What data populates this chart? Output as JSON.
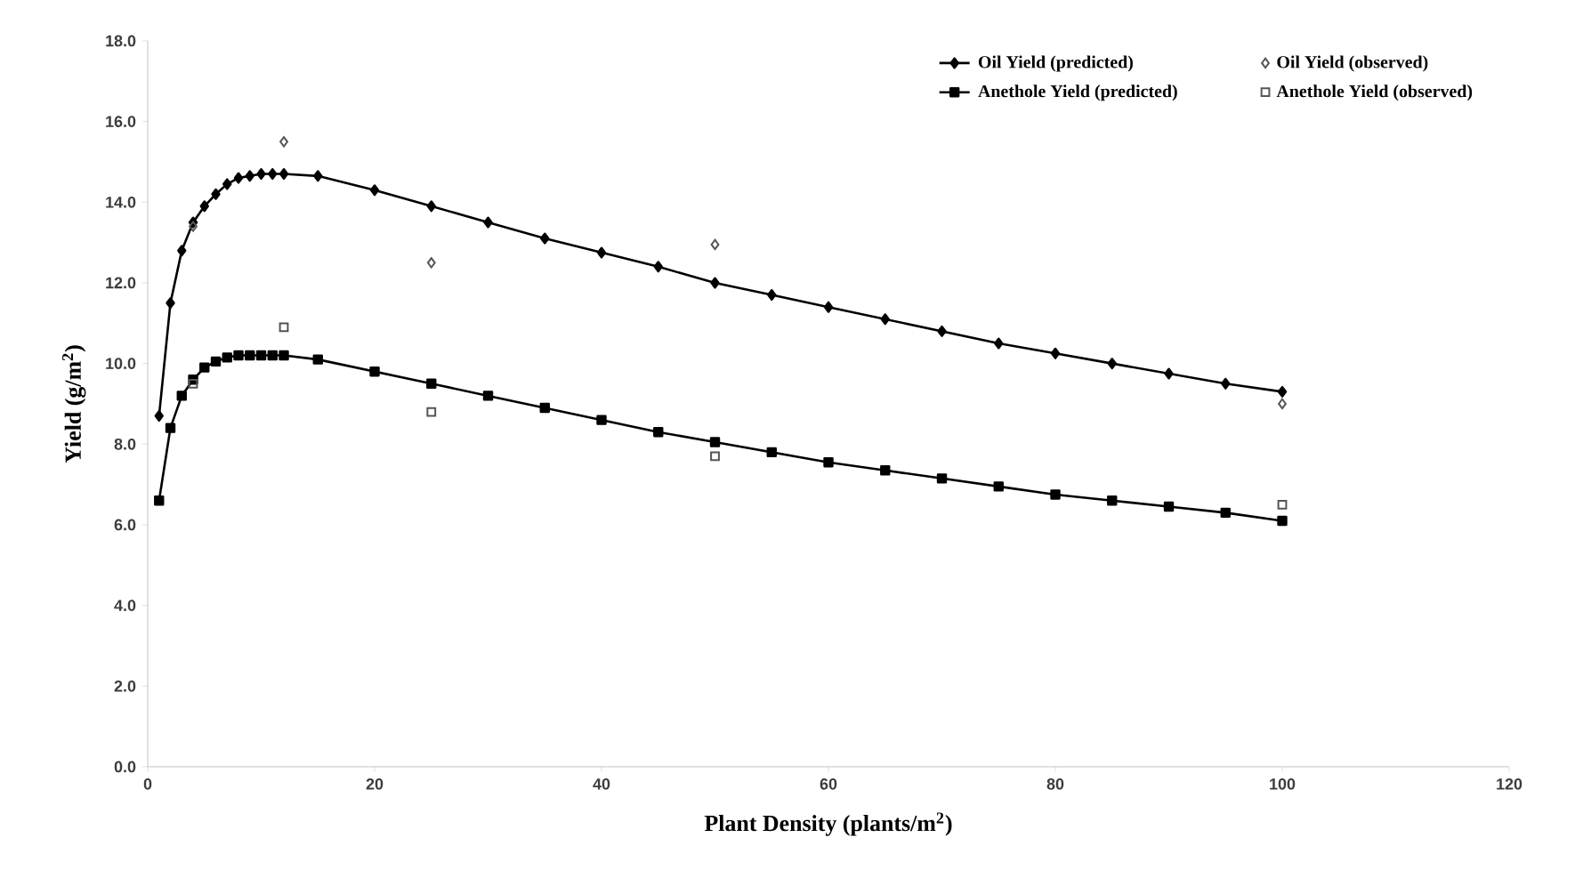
{
  "chart_data": {
    "type": "line",
    "xlabel": "Plant Density (plants/m$^{2}$)",
    "ylabel": "Yield (g/m$^{2}$)",
    "xlim": [
      0,
      120
    ],
    "xticks": [
      0,
      20,
      40,
      60,
      80,
      100,
      120
    ],
    "ylim": [
      0,
      18
    ],
    "yticks": [
      {
        "value": 0,
        "label": "0.0"
      },
      {
        "value": 2,
        "label": "2.0"
      },
      {
        "value": 4,
        "label": "4.0"
      },
      {
        "value": 6,
        "label": "6.0"
      },
      {
        "value": 8,
        "label": "8.0"
      },
      {
        "value": 10,
        "label": "10.0"
      },
      {
        "value": 12,
        "label": "12.0"
      },
      {
        "value": 14,
        "label": "14.0"
      },
      {
        "value": 16,
        "label": "16.0"
      },
      {
        "value": 18,
        "label": "18.0"
      }
    ],
    "legend": "top right",
    "series": [
      {
        "name": "Oil Yield (predicted)",
        "marker": "diamond",
        "color": "#000000",
        "x": [
          1,
          2,
          3,
          4,
          5,
          6,
          7,
          8,
          9,
          10,
          11,
          12,
          15,
          20,
          25,
          30,
          35,
          40,
          45,
          50,
          55,
          60,
          65,
          70,
          75,
          80,
          85,
          90,
          95,
          100
        ],
        "values": [
          8.7,
          11.5,
          12.8,
          13.5,
          13.9,
          14.2,
          14.45,
          14.6,
          14.65,
          14.7,
          14.7,
          14.7,
          14.65,
          14.3,
          13.9,
          13.5,
          13.1,
          12.75,
          12.4,
          12.0,
          11.7,
          11.4,
          11.1,
          10.8,
          10.5,
          10.25,
          10.0,
          9.75,
          9.5,
          9.3
        ]
      },
      {
        "name": "Oil Yield (observed)",
        "type": "scatter",
        "marker": "diamond",
        "color": "#555555",
        "x": [
          4,
          12,
          25,
          50,
          100
        ],
        "values": [
          13.4,
          15.5,
          12.5,
          12.95,
          9.0
        ]
      },
      {
        "name": "Anethole Yield (predicted)",
        "marker": "square",
        "color": "#000000",
        "x": [
          1,
          2,
          3,
          4,
          5,
          6,
          7,
          8,
          9,
          10,
          11,
          12,
          15,
          20,
          25,
          30,
          35,
          40,
          45,
          50,
          55,
          60,
          65,
          70,
          75,
          80,
          85,
          90,
          95,
          100
        ],
        "values": [
          6.6,
          8.4,
          9.2,
          9.6,
          9.9,
          10.05,
          10.15,
          10.2,
          10.2,
          10.2,
          10.2,
          10.2,
          10.1,
          9.8,
          9.5,
          9.2,
          8.9,
          8.6,
          8.3,
          8.05,
          7.8,
          7.55,
          7.35,
          7.15,
          6.95,
          6.75,
          6.6,
          6.45,
          6.3,
          6.1
        ]
      },
      {
        "name": "Anethole Yield (observed)",
        "type": "scatter",
        "marker": "square",
        "color": "#555555",
        "x": [
          4,
          12,
          25,
          50,
          100
        ],
        "values": [
          9.5,
          10.9,
          8.8,
          7.7,
          6.5
        ]
      }
    ]
  }
}
